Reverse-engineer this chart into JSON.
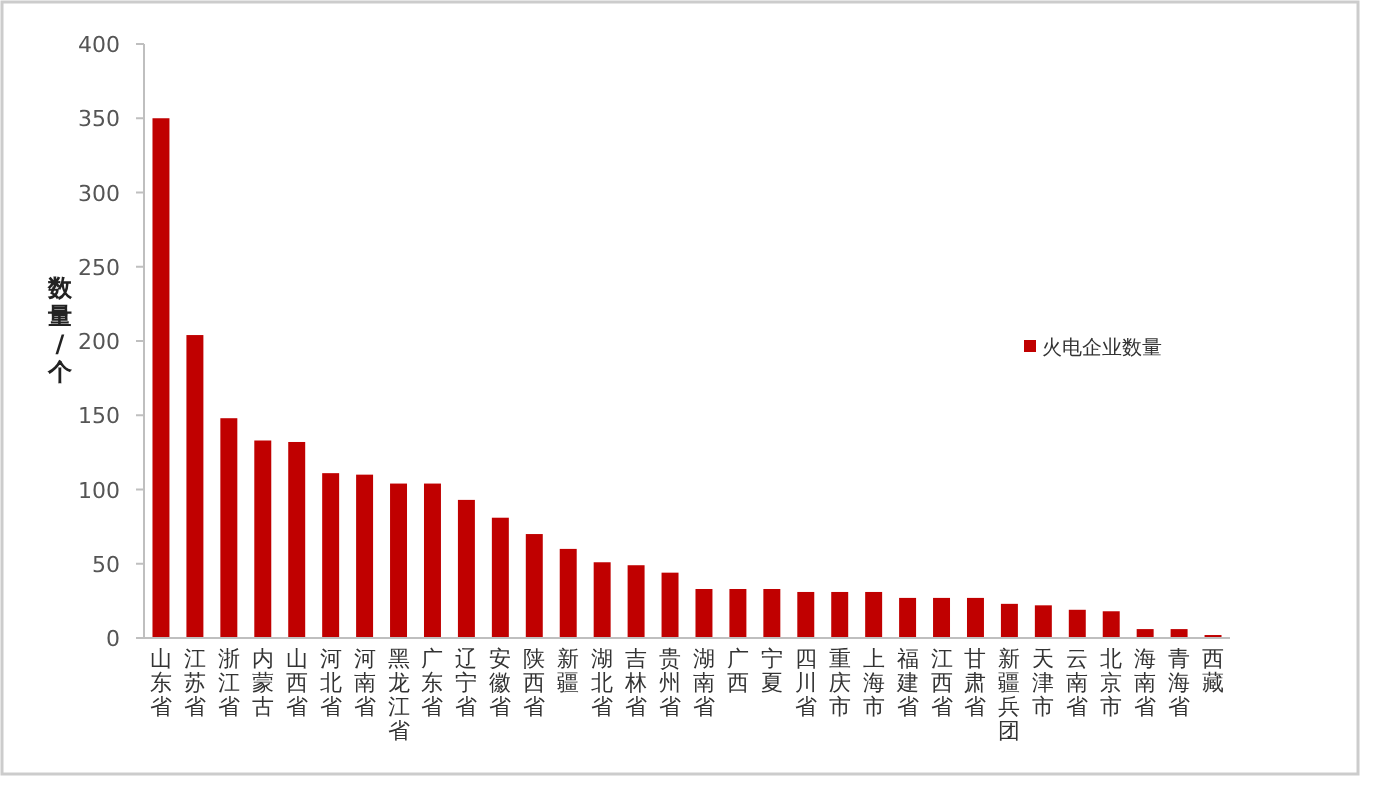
{
  "chart_data": {
    "type": "bar",
    "ylabel": "数量/个",
    "categories": [
      "山东省",
      "江苏省",
      "浙江省",
      "内蒙古",
      "山西省",
      "河北省",
      "河南省",
      "黑龙江省",
      "广东省",
      "辽宁省",
      "安徽省",
      "陕西省",
      "新疆",
      "湖北省",
      "吉林省",
      "贵州省",
      "湖南省",
      "广西",
      "宁夏",
      "四川省",
      "重庆市",
      "上海市",
      "福建省",
      "江西省",
      "甘肃省",
      "新疆兵团",
      "天津市",
      "云南省",
      "北京市",
      "海南省",
      "青海省",
      "西藏"
    ],
    "series": [
      {
        "name": "火电企业数量",
        "color": "#c00000",
        "values": [
          350,
          204,
          148,
          133,
          132,
          111,
          110,
          104,
          104,
          93,
          81,
          70,
          60,
          51,
          49,
          44,
          33,
          33,
          33,
          31,
          31,
          31,
          27,
          27,
          27,
          23,
          22,
          19,
          18,
          6,
          6,
          2
        ]
      }
    ],
    "ylim": [
      0,
      400
    ],
    "yticks": [
      0,
      50,
      100,
      150,
      200,
      250,
      300,
      350,
      400
    ],
    "grid": false,
    "legend": "right"
  }
}
